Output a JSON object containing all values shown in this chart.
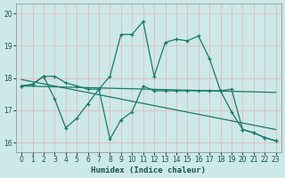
{
  "xlabel": "Humidex (Indice chaleur)",
  "bg_color": "#cce8e8",
  "grid_color": "#e8b0b0",
  "line_color": "#1a7868",
  "xlim": [
    -0.5,
    23.5
  ],
  "ylim": [
    15.7,
    20.3
  ],
  "yticks": [
    16,
    17,
    18,
    19,
    20
  ],
  "xticks": [
    0,
    1,
    2,
    3,
    4,
    5,
    6,
    7,
    8,
    9,
    10,
    11,
    12,
    13,
    14,
    15,
    16,
    17,
    18,
    19,
    20,
    21,
    22,
    23
  ],
  "line1_x": [
    0,
    1,
    2,
    3,
    4,
    5,
    6,
    7,
    8,
    9,
    10,
    11,
    12,
    13,
    14,
    15,
    16,
    17,
    18,
    19,
    20,
    21,
    22,
    23
  ],
  "line1_y": [
    17.75,
    17.8,
    18.05,
    18.05,
    17.85,
    17.75,
    17.65,
    17.65,
    18.05,
    19.35,
    19.35,
    19.75,
    18.05,
    19.1,
    19.2,
    19.15,
    19.3,
    18.6,
    17.6,
    17.65,
    16.4,
    16.3,
    16.15,
    16.05
  ],
  "line2_x": [
    0,
    1,
    2,
    3,
    4,
    5,
    6,
    7,
    8,
    9,
    10,
    11,
    12,
    13,
    14,
    15,
    16,
    17,
    18,
    19,
    20,
    21,
    22,
    23
  ],
  "line2_y": [
    17.75,
    17.8,
    18.05,
    17.35,
    16.45,
    16.75,
    17.2,
    17.65,
    16.1,
    16.7,
    16.95,
    17.75,
    17.6,
    17.6,
    17.6,
    17.6,
    17.6,
    17.6,
    17.6,
    16.95,
    16.4,
    16.3,
    16.15,
    16.05
  ],
  "line3_x": [
    0,
    23
  ],
  "line3_y": [
    17.75,
    17.55
  ],
  "line4_x": [
    0,
    23
  ],
  "line4_y": [
    17.95,
    16.4
  ]
}
